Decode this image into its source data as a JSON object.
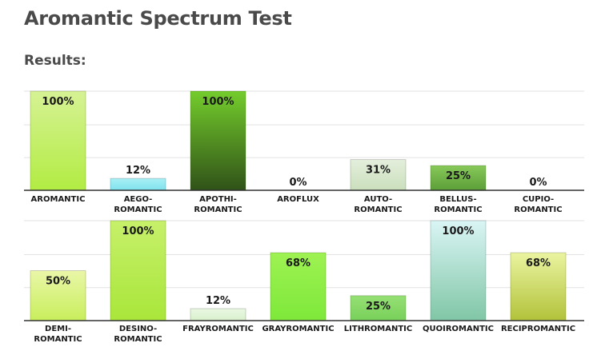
{
  "page": {
    "title": "Aromantic Spectrum Test",
    "subtitle": "Results:"
  },
  "chart_data": [
    {
      "type": "bar",
      "categories": [
        "AROMANTIC",
        "AEGO-\nROMANTIC",
        "APOTHI-\nROMANTIC",
        "AROFLUX",
        "AUTO-\nROMANTIC",
        "BELLUS-\nROMANTIC",
        "CUPIO-\nROMANTIC"
      ],
      "values": [
        100,
        12,
        100,
        0,
        31,
        25,
        0
      ],
      "value_labels": [
        "100%",
        "12%",
        "100%",
        "0%",
        "31%",
        "25%",
        "0%"
      ],
      "ylim": [
        0,
        100
      ],
      "grid": true,
      "bar_gradients": [
        [
          "#d6f294",
          "#b2ec43"
        ],
        [
          "#a8f0f5",
          "#7fe2ee"
        ],
        [
          "#74cc2c",
          "#305218"
        ],
        [
          "#cccccc",
          "#cccccc"
        ],
        [
          "#e4efdc",
          "#cadfbc"
        ],
        [
          "#88c95a",
          "#5c9e38"
        ],
        [
          "#cccccc",
          "#cccccc"
        ]
      ]
    },
    {
      "type": "bar",
      "categories": [
        "DEMI-\nROMANTIC",
        "DESINO-\nROMANTIC",
        "FRAYROMANTIC",
        "GRAYROMANTIC",
        "LITHROMANTIC",
        "QUOIROMANTIC",
        "RECIPROMANTIC"
      ],
      "values": [
        50,
        100,
        12,
        68,
        25,
        100,
        68
      ],
      "value_labels": [
        "50%",
        "100%",
        "12%",
        "68%",
        "25%",
        "100%",
        "68%"
      ],
      "ylim": [
        0,
        100
      ],
      "grid": true,
      "bar_gradients": [
        [
          "#eaf7a8",
          "#c8ee5c"
        ],
        [
          "#c6f06a",
          "#a9e63a"
        ],
        [
          "#eaf8e2",
          "#d8f0cc"
        ],
        [
          "#9ef252",
          "#7ee83a"
        ],
        [
          "#96e074",
          "#78d05a"
        ],
        [
          "#daf5f5",
          "#80c6a6"
        ],
        [
          "#eaf4a0",
          "#b2c23a"
        ]
      ]
    }
  ]
}
